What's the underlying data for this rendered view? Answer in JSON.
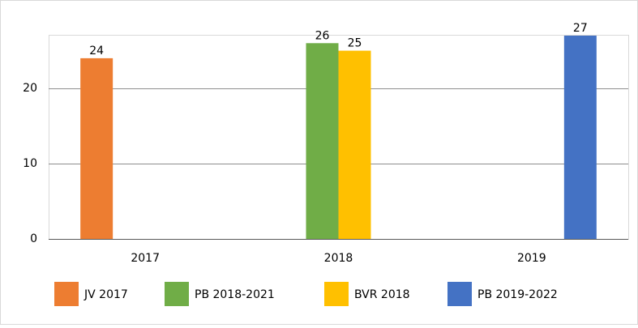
{
  "chart_data": {
    "type": "bar",
    "categories": [
      "2017",
      "2018",
      "2019"
    ],
    "series": [
      {
        "name": "JV 2017",
        "color": "#ed7d31",
        "values": [
          24,
          null,
          null
        ]
      },
      {
        "name": "PB 2018-2021",
        "color": "#70ad47",
        "values": [
          null,
          26,
          null
        ]
      },
      {
        "name": "BVR 2018",
        "color": "#ffc000",
        "values": [
          null,
          25,
          null
        ]
      },
      {
        "name": "PB 2019-2022",
        "color": "#4472c4",
        "values": [
          null,
          null,
          27
        ]
      }
    ],
    "ylim": [
      0,
      27
    ],
    "yticks": [
      0,
      10,
      20
    ],
    "grid": true,
    "legend": "bottom"
  }
}
